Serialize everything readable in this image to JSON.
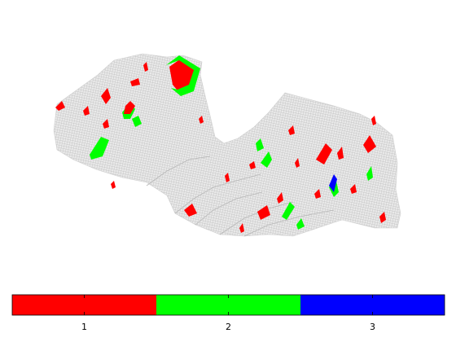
{
  "chart_data": {
    "type": "heatmap",
    "title": "",
    "background_mesh_color": "#c8c8c8",
    "categories": [
      {
        "value": 1,
        "color": "#ff0000"
      },
      {
        "value": 2,
        "color": "#00ff00"
      },
      {
        "value": 3,
        "color": "#0000ff"
      }
    ],
    "colorbar": {
      "orientation": "horizontal",
      "placement": "bottom",
      "range": [
        0.5,
        3.5
      ],
      "ticks": [
        1,
        2,
        3
      ],
      "tick_labels": [
        "1",
        "2",
        "3"
      ]
    }
  }
}
